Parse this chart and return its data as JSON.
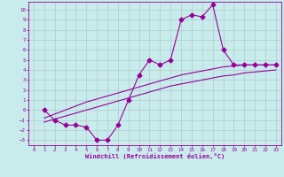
{
  "xlabel": "Windchill (Refroidissement éolien,°C)",
  "bg_color": "#c8ecec",
  "line_color": "#990099",
  "xlim": [
    -0.5,
    23.5
  ],
  "ylim": [
    -3.5,
    10.8
  ],
  "xticks": [
    0,
    1,
    2,
    3,
    4,
    5,
    6,
    7,
    8,
    9,
    10,
    11,
    12,
    13,
    14,
    15,
    16,
    17,
    18,
    19,
    20,
    21,
    22,
    23
  ],
  "yticks": [
    10,
    9,
    8,
    7,
    6,
    5,
    4,
    3,
    2,
    1,
    0,
    -1,
    -2,
    -3
  ],
  "grid_color": "#b0cccc",
  "line1_x": [
    1,
    2,
    3,
    4,
    5,
    6,
    7,
    8,
    9,
    10,
    11,
    12,
    13,
    14,
    15,
    16,
    17,
    18,
    19,
    20,
    21,
    22,
    23
  ],
  "line1_y": [
    0,
    -1,
    -1.5,
    -1.5,
    -1.7,
    -3,
    -3,
    -1.5,
    1,
    3.5,
    5,
    4.5,
    5,
    9,
    9.5,
    9.3,
    10.5,
    6,
    4.5,
    4.5,
    4.5,
    4.5,
    4.5
  ],
  "line2_x": [
    1,
    2,
    3,
    4,
    5,
    6,
    7,
    8,
    9,
    10,
    11,
    12,
    13,
    14,
    15,
    16,
    17,
    18,
    19,
    20,
    21,
    22,
    23
  ],
  "line2_y": [
    -0.8,
    -0.4,
    0.0,
    0.4,
    0.8,
    1.1,
    1.4,
    1.7,
    2.0,
    2.3,
    2.6,
    2.9,
    3.2,
    3.5,
    3.7,
    3.9,
    4.1,
    4.3,
    4.4,
    4.5,
    4.5,
    4.5,
    4.5
  ],
  "line3_x": [
    1,
    2,
    3,
    4,
    5,
    6,
    7,
    8,
    9,
    10,
    11,
    12,
    13,
    14,
    15,
    16,
    17,
    18,
    19,
    20,
    21,
    22,
    23
  ],
  "line3_y": [
    -1.2,
    -0.9,
    -0.6,
    -0.3,
    0.0,
    0.3,
    0.6,
    0.9,
    1.2,
    1.5,
    1.8,
    2.1,
    2.4,
    2.6,
    2.8,
    3.0,
    3.2,
    3.4,
    3.5,
    3.7,
    3.8,
    3.9,
    4.0
  ],
  "markersize": 2.5
}
